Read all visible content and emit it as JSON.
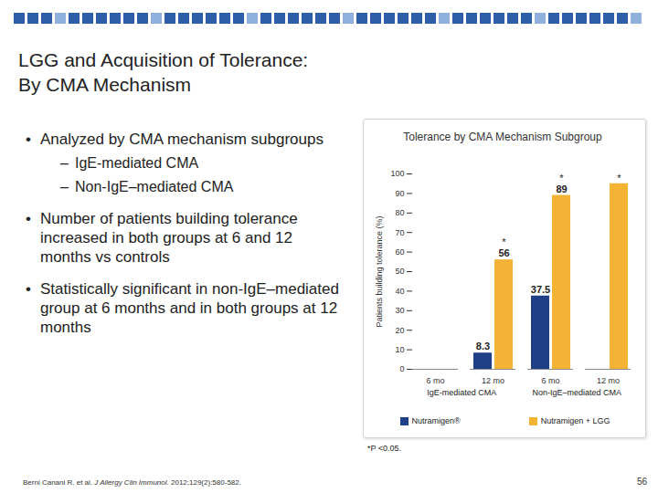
{
  "slide": {
    "title": [
      "LGG and Acquisition of Tolerance:",
      "By CMA Mechanism"
    ],
    "bullets": [
      {
        "text": "Analyzed by CMA mechanism subgroups",
        "sub": [
          "IgE-mediated CMA",
          "Non-IgE–mediated CMA"
        ]
      },
      {
        "text": "Number of patients building tolerance increased in both groups at 6 and 12 months vs controls"
      },
      {
        "text": "Statistically significant in non-IgE–mediated group at 6 months and in both groups at 12 months"
      }
    ],
    "footnote": "*P <0.05.",
    "citation": {
      "authors": "Berni Canani R. et al.",
      "journal": "J Allergy Clin Immunol.",
      "details": "2012;129(2):580-582."
    },
    "page": "56"
  },
  "chart_data": {
    "type": "bar",
    "title": "Tolerance by CMA Mechanism Subgroup",
    "y_label": "Patients building tolerance (%)",
    "categories": [
      "6 mo",
      "12 mo",
      "6 mo",
      "12 mo"
    ],
    "groups": [
      "IgE-mediated CMA",
      "Non-IgE–mediated CMA"
    ],
    "series": [
      {
        "name": "Nutramigen®",
        "color": "#1f4086",
        "values": [
          null,
          8.3,
          37.5,
          null
        ],
        "value_labels": [
          null,
          "8.3",
          "37.5",
          null
        ]
      },
      {
        "name": "Nutramigen + LGG",
        "color": "#f5b335",
        "values": [
          null,
          56,
          89,
          95
        ],
        "value_labels": [
          null,
          "56",
          "89",
          null
        ],
        "annotations": [
          null,
          "*",
          "*",
          "*"
        ]
      }
    ],
    "ylim": [
      0,
      100
    ],
    "yticks": [
      0,
      10,
      20,
      30,
      40,
      50,
      60,
      70,
      80,
      90,
      100
    ],
    "data_labels": true,
    "legend": "bottom",
    "grid": false
  }
}
